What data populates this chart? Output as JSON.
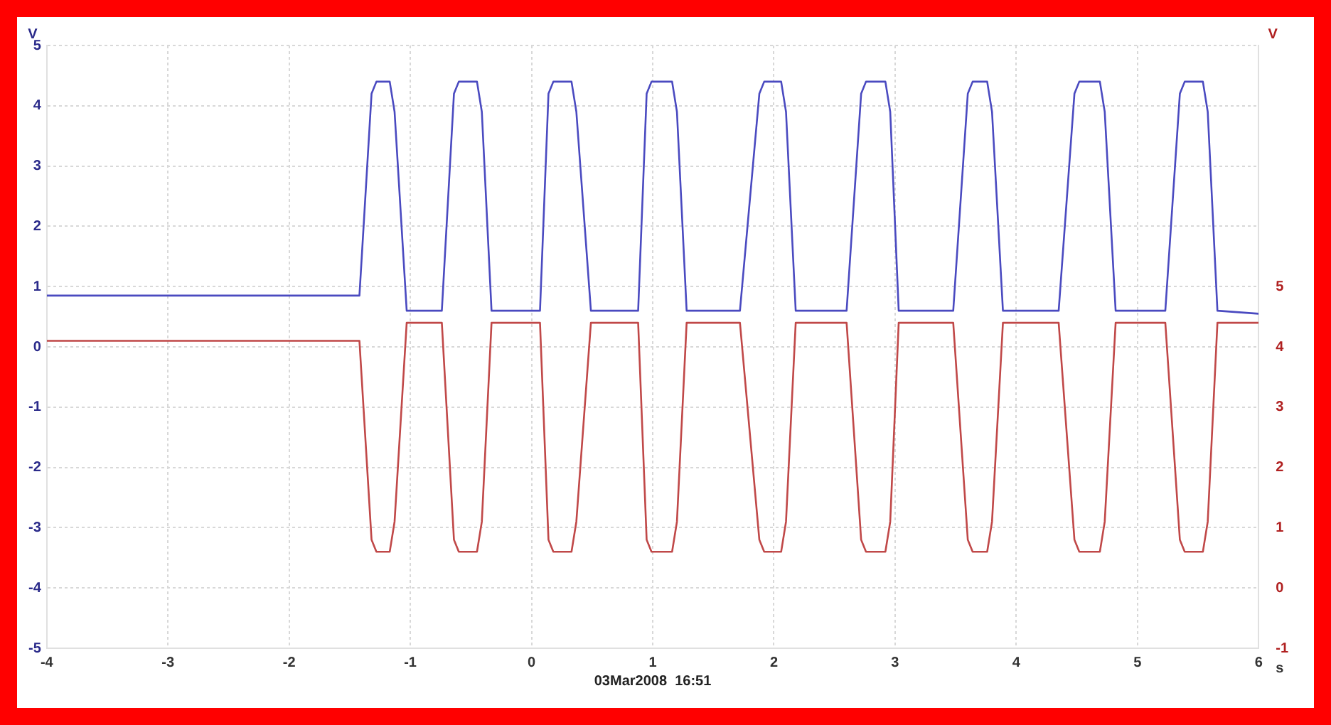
{
  "chart_data": {
    "type": "line",
    "xlabel": "s",
    "ylabel": "V",
    "y2label": "V",
    "annotations": [
      "03Mar2008  16:51"
    ],
    "xlim": [
      -4,
      6
    ],
    "xticks": [
      -4,
      -3,
      -2,
      -1,
      0,
      1,
      2,
      3,
      4,
      5,
      6
    ],
    "ylim": [
      -5,
      5
    ],
    "yticks": [
      -5,
      -4,
      -3,
      -2,
      -1,
      0,
      1,
      2,
      3,
      4,
      5
    ],
    "y2lim": [
      -1,
      9
    ],
    "y2ticks": [
      -1,
      0,
      1,
      2,
      3,
      4,
      5
    ],
    "grid": true,
    "legend": false,
    "marker": "none",
    "line_style": "solid",
    "series": [
      {
        "color": "#4a4ac0",
        "x": [
          -4,
          -1.42,
          -1.32,
          -1.28,
          -1.17,
          -1.13,
          -1.03,
          -0.74,
          -0.64,
          -0.6,
          -0.45,
          -0.41,
          -0.33,
          0.07,
          0.14,
          0.18,
          0.33,
          0.37,
          0.49,
          0.88,
          0.95,
          0.99,
          1.16,
          1.2,
          1.28,
          1.72,
          1.88,
          1.92,
          2.06,
          2.1,
          2.18,
          2.6,
          2.72,
          2.76,
          2.92,
          2.96,
          3.03,
          3.48,
          3.6,
          3.64,
          3.76,
          3.8,
          3.89,
          4.35,
          4.48,
          4.52,
          4.69,
          4.73,
          4.82,
          5.23,
          5.35,
          5.39,
          5.54,
          5.58,
          5.66,
          6
        ],
        "values": [
          0.85,
          0.85,
          4.2,
          4.4,
          4.4,
          3.9,
          0.6,
          0.6,
          4.2,
          4.4,
          4.4,
          3.9,
          0.6,
          0.6,
          4.2,
          4.4,
          4.4,
          3.9,
          0.6,
          0.6,
          4.2,
          4.4,
          4.4,
          3.9,
          0.6,
          0.6,
          4.2,
          4.4,
          4.4,
          3.9,
          0.6,
          0.6,
          4.2,
          4.4,
          4.4,
          3.9,
          0.6,
          0.6,
          4.2,
          4.4,
          4.4,
          3.9,
          0.6,
          0.6,
          4.2,
          4.4,
          4.4,
          3.9,
          0.6,
          0.6,
          4.2,
          4.4,
          4.4,
          3.9,
          0.6,
          0.55
        ]
      },
      {
        "color": "#c04848",
        "axis": "y2",
        "x": [
          -4,
          -1.42,
          -1.32,
          -1.28,
          -1.17,
          -1.13,
          -1.03,
          -0.74,
          -0.64,
          -0.6,
          -0.45,
          -0.41,
          -0.33,
          0.07,
          0.14,
          0.18,
          0.33,
          0.37,
          0.49,
          0.88,
          0.95,
          0.99,
          1.16,
          1.2,
          1.28,
          1.72,
          1.88,
          1.92,
          2.06,
          2.1,
          2.18,
          2.6,
          2.72,
          2.76,
          2.92,
          2.96,
          3.03,
          3.48,
          3.6,
          3.64,
          3.76,
          3.8,
          3.89,
          4.35,
          4.48,
          4.52,
          4.69,
          4.73,
          4.82,
          5.23,
          5.35,
          5.39,
          5.54,
          5.58,
          5.66,
          6
        ],
        "values": [
          4.1,
          4.1,
          0.8,
          0.6,
          0.6,
          1.1,
          4.4,
          4.4,
          0.8,
          0.6,
          0.6,
          1.1,
          4.4,
          4.4,
          0.8,
          0.6,
          0.6,
          1.1,
          4.4,
          4.4,
          0.8,
          0.6,
          0.6,
          1.1,
          4.4,
          4.4,
          0.8,
          0.6,
          0.6,
          1.1,
          4.4,
          4.4,
          0.8,
          0.6,
          0.6,
          1.1,
          4.4,
          4.4,
          0.8,
          0.6,
          0.6,
          1.1,
          4.4,
          4.4,
          0.8,
          0.6,
          0.6,
          1.1,
          4.4,
          4.4,
          0.8,
          0.6,
          0.6,
          1.1,
          4.4,
          4.4
        ]
      }
    ]
  }
}
